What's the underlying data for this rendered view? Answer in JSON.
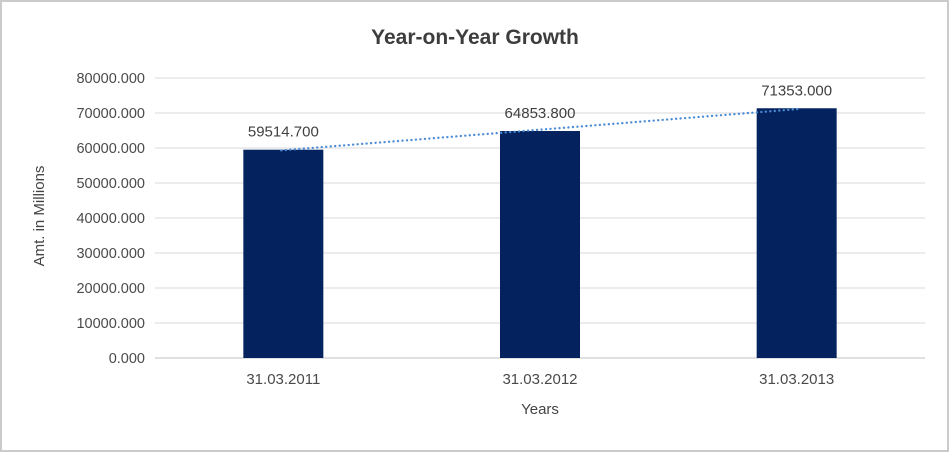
{
  "frame": {
    "border_color": "#cbcbcb",
    "background": "#ffffff"
  },
  "chart_data": {
    "type": "bar",
    "title": "Year-on-Year Growth",
    "categories": [
      "31.03.2011",
      "31.03.2012",
      "31.03.2013"
    ],
    "values": [
      59514.7,
      64853.8,
      71353.0
    ],
    "value_labels": [
      "59514.700",
      "64853.800",
      "71353.000"
    ],
    "xlabel": "Years",
    "ylabel": "Amt. in Millions",
    "ylim": [
      0,
      80000
    ],
    "ytick_step": 10000,
    "ytick_labels": [
      "0.000",
      "10000.000",
      "20000.000",
      "30000.000",
      "40000.000",
      "50000.000",
      "60000.000",
      "70000.000",
      "80000.000"
    ],
    "grid": true,
    "legend_position": "none",
    "bar_color": "#04235e",
    "trendline": {
      "type": "linear",
      "style": "dotted",
      "color": "#4a8bd6"
    },
    "gridline_color": "#d9d9d9",
    "axisline_color": "#c2c2c2",
    "label_color": "#404040"
  }
}
